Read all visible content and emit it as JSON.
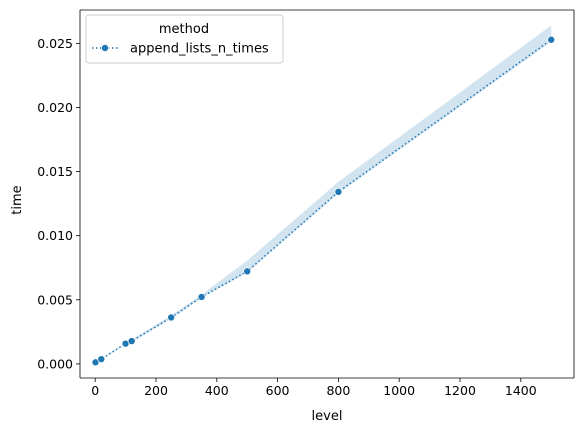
{
  "chart_data": {
    "type": "line",
    "xlabel": "level",
    "ylabel": "time",
    "xlim": [
      -50,
      1575
    ],
    "ylim": [
      -0.0011,
      0.0276
    ],
    "x_ticks": [
      0,
      200,
      400,
      600,
      800,
      1000,
      1200,
      1400
    ],
    "y_ticks": [
      0.0,
      0.005,
      0.01,
      0.015,
      0.02,
      0.025
    ],
    "y_tick_labels": [
      "0.000",
      "0.005",
      "0.010",
      "0.015",
      "0.020",
      "0.025"
    ],
    "grid": false,
    "legend": {
      "title": "method",
      "placement": "top-left"
    },
    "series": [
      {
        "name": "append_lists_n_times",
        "color": "#1f77b4",
        "line_style": "dotted",
        "marker": "circle",
        "x": [
          1,
          20,
          100,
          120,
          250,
          350,
          500,
          800,
          1500
        ],
        "y": [
          0.00012,
          0.00037,
          0.00158,
          0.00178,
          0.00362,
          0.00522,
          0.00722,
          0.01342,
          0.02528
        ],
        "ci_lower": [
          0.00011,
          0.00035,
          0.00152,
          0.0017,
          0.00352,
          0.00515,
          0.00712,
          0.0133,
          0.02512
        ],
        "ci_upper": [
          0.00014,
          0.0004,
          0.00166,
          0.00188,
          0.00378,
          0.0054,
          0.00805,
          0.0142,
          0.0264
        ]
      }
    ]
  }
}
